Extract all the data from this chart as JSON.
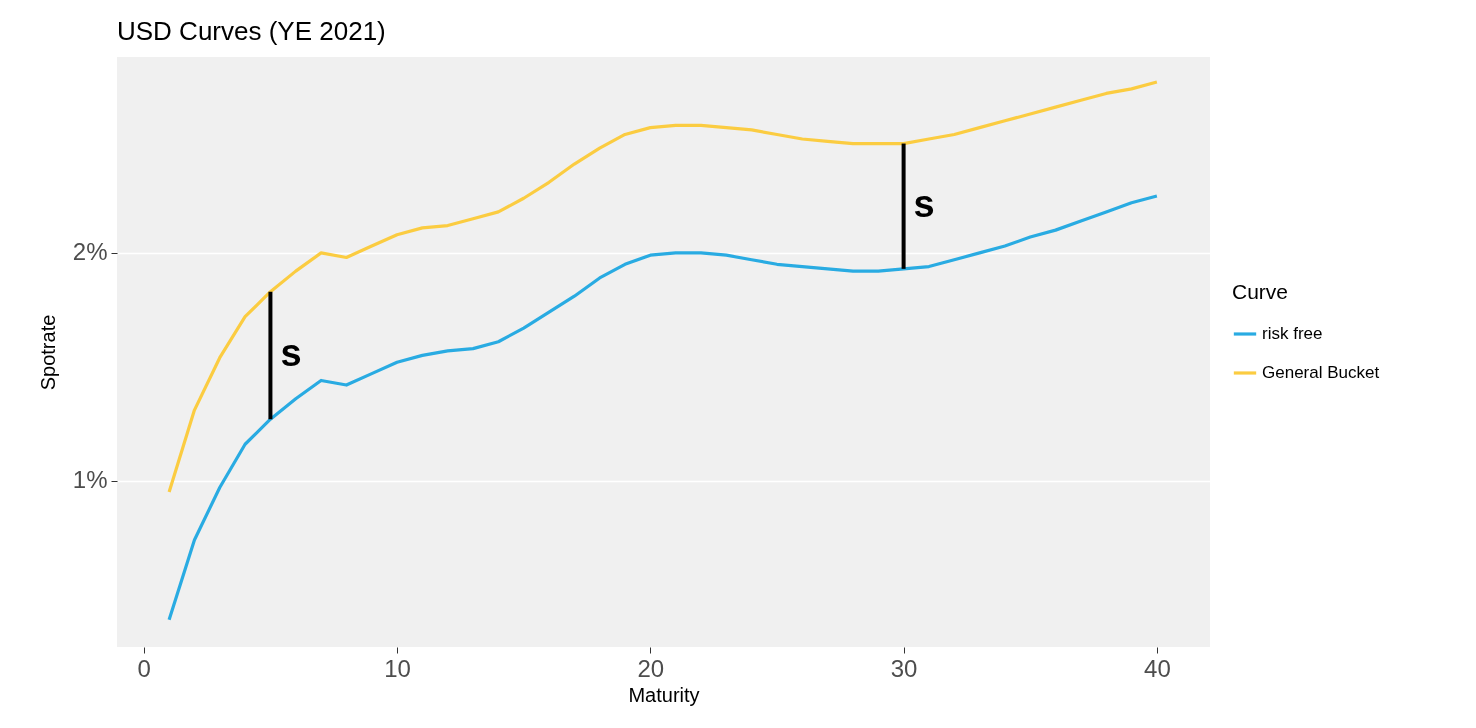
{
  "chart_data": {
    "type": "line",
    "title": "USD Curves (YE 2021)",
    "xlabel": "Maturity",
    "ylabel": "Spotrate",
    "legend_title": "Curve",
    "legend": "right",
    "grid": "y",
    "line_style": "solid",
    "x": [
      1,
      2,
      3,
      4,
      5,
      6,
      7,
      8,
      9,
      10,
      11,
      12,
      13,
      14,
      15,
      16,
      17,
      18,
      19,
      20,
      21,
      22,
      23,
      24,
      25,
      26,
      27,
      28,
      29,
      30,
      31,
      32,
      33,
      34,
      35,
      36,
      37,
      38,
      39,
      40
    ],
    "xlim": [
      -0.86,
      41.9
    ],
    "xticks": [
      0,
      10,
      20,
      30,
      40
    ],
    "ylim": [
      0.27,
      2.86
    ],
    "yticks": [
      {
        "value": 1,
        "label": "1%"
      },
      {
        "value": 2,
        "label": "2%"
      }
    ],
    "series": [
      {
        "name": "risk free",
        "color": "#29abe2",
        "values": [
          0.39,
          0.74,
          0.97,
          1.16,
          1.27,
          1.36,
          1.44,
          1.42,
          1.47,
          1.52,
          1.55,
          1.57,
          1.58,
          1.61,
          1.67,
          1.74,
          1.81,
          1.89,
          1.95,
          1.99,
          2.0,
          2.0,
          1.99,
          1.97,
          1.95,
          1.94,
          1.93,
          1.92,
          1.92,
          1.93,
          1.94,
          1.97,
          2.0,
          2.03,
          2.07,
          2.1,
          2.14,
          2.18,
          2.22,
          2.25
        ]
      },
      {
        "name": "General Bucket",
        "color": "#fbcc41",
        "values": [
          0.95,
          1.31,
          1.54,
          1.72,
          1.83,
          1.92,
          2.0,
          1.98,
          2.03,
          2.08,
          2.11,
          2.12,
          2.15,
          2.18,
          2.24,
          2.31,
          2.39,
          2.46,
          2.52,
          2.55,
          2.56,
          2.56,
          2.55,
          2.54,
          2.52,
          2.5,
          2.49,
          2.48,
          2.48,
          2.48,
          2.5,
          2.52,
          2.55,
          2.58,
          2.61,
          2.64,
          2.67,
          2.7,
          2.72,
          2.75
        ]
      },
      {
        "type": "bar",
        "color": "#000000",
        "x": [
          5,
          30
        ],
        "base": [
          1.27,
          1.93
        ],
        "values": [
          0.56,
          0.55
        ]
      }
    ],
    "annotations": [
      "s",
      "s"
    ]
  }
}
